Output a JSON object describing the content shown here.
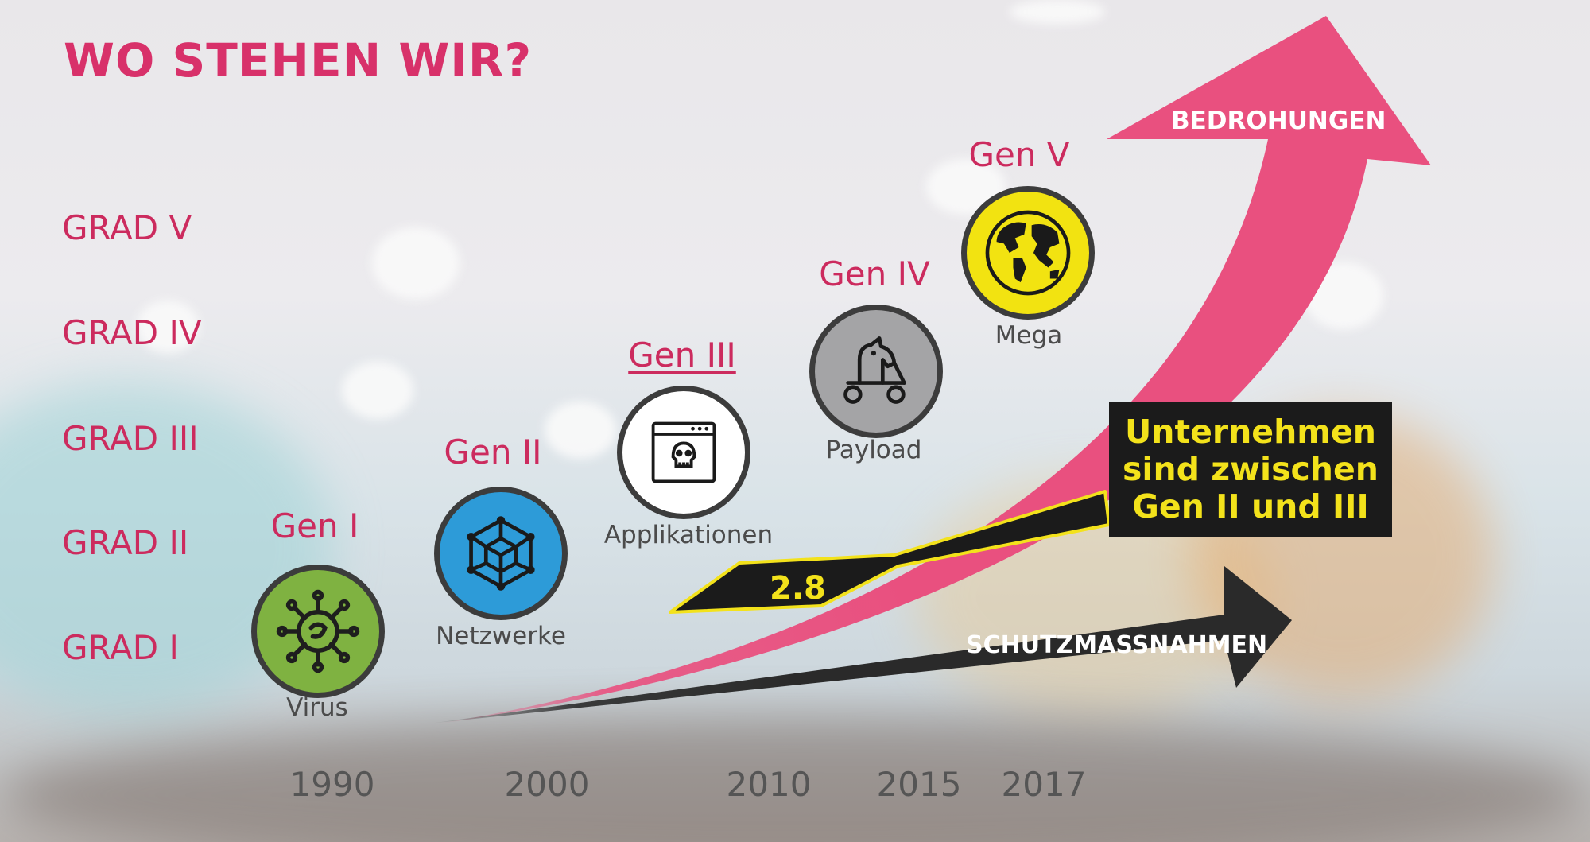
{
  "title": "WO STEHEN WIR?",
  "grades": [
    "GRAD V",
    "GRAD IV",
    "GRAD III",
    "GRAD II",
    "GRAD I"
  ],
  "generations": [
    {
      "label": "Gen I",
      "caption": "Virus",
      "icon": "virus-icon",
      "color": "#7fb241"
    },
    {
      "label": "Gen II",
      "caption": "Netzwerke",
      "icon": "network-cube-icon",
      "color": "#2d9bd8"
    },
    {
      "label": "Gen III",
      "caption": "Applikationen",
      "icon": "app-skull-icon",
      "color": "#ffffff"
    },
    {
      "label": "Gen IV",
      "caption": "Payload",
      "icon": "trojan-horse-icon",
      "color": "#a4a4a6"
    },
    {
      "label": "Gen V",
      "caption": "Mega",
      "icon": "globe-icon",
      "color": "#f2e311"
    }
  ],
  "years": [
    "1990",
    "2000",
    "2010",
    "2015",
    "2017"
  ],
  "threats_label": "BEDROHUNGEN",
  "protection_label": "SCHUTZMASSNAHMEN",
  "company_badge": "2.8",
  "callout": [
    "Unternehmen",
    "sind zwischen",
    "Gen II und III"
  ],
  "colors": {
    "accent": "#d8316a",
    "threat_arrow": "#e9507f",
    "protection_arrow": "#2a2a2a",
    "highlight": "#f3e21b"
  }
}
